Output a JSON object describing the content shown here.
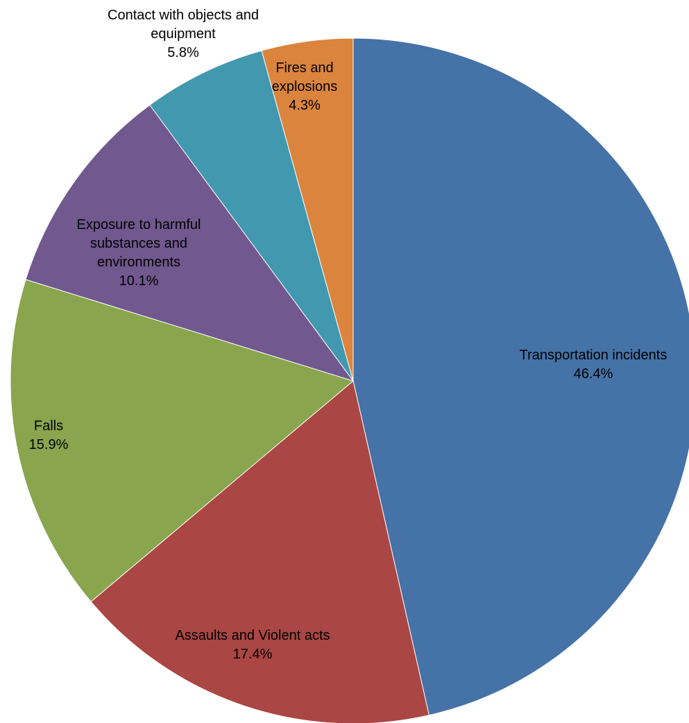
{
  "chart_data": {
    "type": "pie",
    "start": "12 o'clock, clockwise",
    "slices": [
      {
        "label": [
          "Transportation incidents"
        ],
        "value_label": "46.4%",
        "value": 46.4,
        "color": "#4572A7"
      },
      {
        "label": [
          "Assaults and Violent acts"
        ],
        "value_label": "17.4%",
        "value": 17.4,
        "color": "#AA4643"
      },
      {
        "label": [
          "Falls"
        ],
        "value_label": "15.9%",
        "value": 15.9,
        "color": "#89A54E"
      },
      {
        "label": [
          "Exposure to harmful",
          "substances and",
          "environments"
        ],
        "value_label": "10.1%",
        "value": 10.1,
        "color": "#71588F"
      },
      {
        "label": [
          "Contact with objects and",
          "equipment"
        ],
        "value_label": "5.8%",
        "value": 5.8,
        "color": "#4198AF"
      },
      {
        "label": [
          "Fires and",
          "explosions"
        ],
        "value_label": "4.3%",
        "value": 4.3,
        "color": "#DB843D"
      }
    ]
  }
}
